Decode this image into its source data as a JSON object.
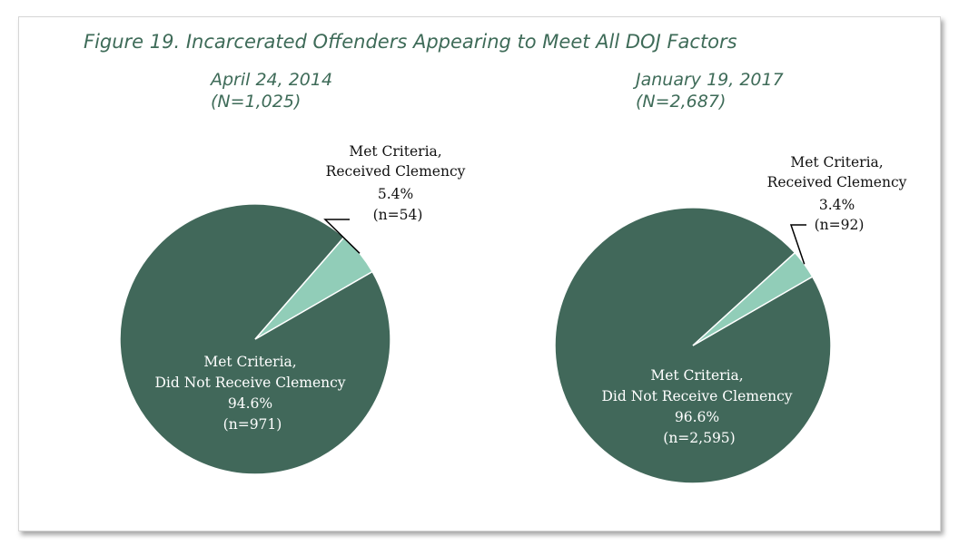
{
  "figure_title": "Figure 19. Incarcerated Offenders Appearing to Meet All DOJ Factors",
  "colors": {
    "did_not_receive": "#41685a",
    "received": "#91cdb8",
    "title_text": "#3e6b58"
  },
  "chart_data": [
    {
      "type": "pie",
      "title": "April 24, 2014",
      "subtitle": "(N=1,025)",
      "slices": [
        {
          "label_line1": "Met Criteria,",
          "label_line2": "Did Not Receive Clemency",
          "percent_label": "94.6%",
          "n_label": "(n=971)",
          "value": 971,
          "percent": 94.6
        },
        {
          "label_line1": "Met Criteria,",
          "label_line2": "Received Clemency",
          "percent_label": "5.4%",
          "n_label": "(n=54)",
          "value": 54,
          "percent": 5.4
        }
      ]
    },
    {
      "type": "pie",
      "title": "January 19, 2017",
      "subtitle": "(N=2,687)",
      "slices": [
        {
          "label_line1": "Met Criteria,",
          "label_line2": "Did Not Receive Clemency",
          "percent_label": "96.6%",
          "n_label": "(n=2,595)",
          "value": 2595,
          "percent": 96.6
        },
        {
          "label_line1": "Met Criteria,",
          "label_line2": "Received Clemency",
          "percent_label": "3.4%",
          "n_label": "(n=92)",
          "value": 92,
          "percent": 3.4
        }
      ]
    }
  ]
}
